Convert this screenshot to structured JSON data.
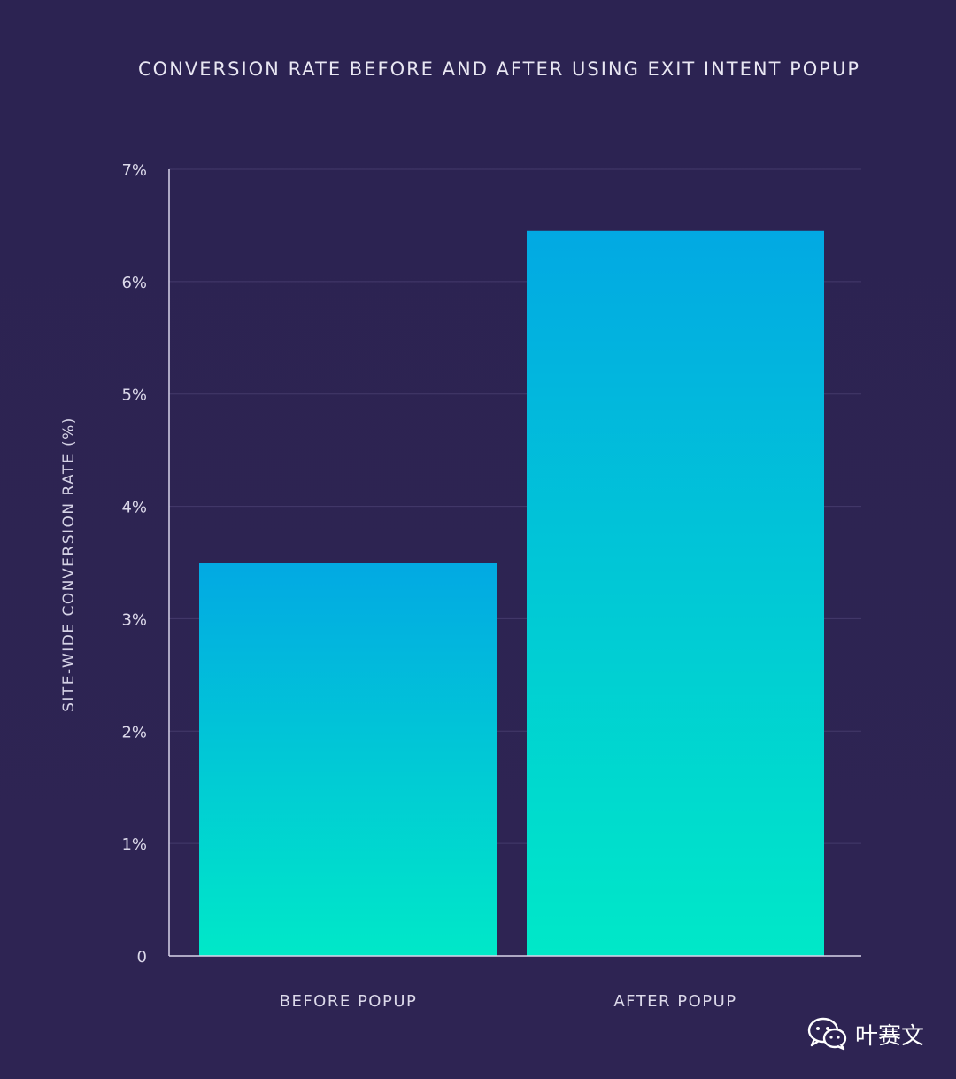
{
  "chart_data": {
    "type": "bar",
    "title": "CONVERSION RATE BEFORE AND AFTER USING EXIT INTENT POPUP",
    "xlabel": "",
    "ylabel": "SITE-WIDE CONVERSION RATE (%)",
    "categories": [
      "BEFORE POPUP",
      "AFTER POPUP"
    ],
    "values": [
      3.5,
      6.45
    ],
    "ylim": [
      0,
      7
    ],
    "yticks": [
      {
        "value": 0,
        "label": "0"
      },
      {
        "value": 1,
        "label": "1%"
      },
      {
        "value": 2,
        "label": "2%"
      },
      {
        "value": 3,
        "label": "3%"
      },
      {
        "value": 4,
        "label": "4%"
      },
      {
        "value": 5,
        "label": "5%"
      },
      {
        "value": 6,
        "label": "6%"
      },
      {
        "value": 7,
        "label": "7%"
      }
    ],
    "grid": true,
    "legend": "none",
    "colors": {
      "background": "#2d2352",
      "bar_top": "#02a9e3",
      "bar_bottom": "#00e8c8",
      "grid": "#443a6b",
      "axis": "#d8d4ea",
      "text": "#dcd9ea"
    }
  },
  "watermark": {
    "text": "叶赛文",
    "icon": "wechat-icon"
  }
}
